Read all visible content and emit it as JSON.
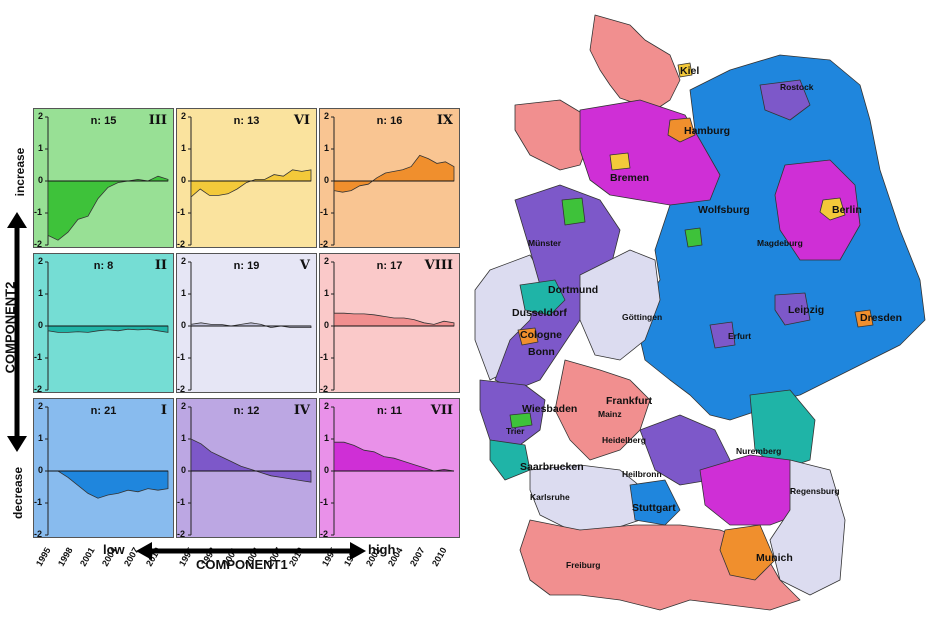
{
  "panels": [
    {
      "id": "III",
      "n_label": "n: 15",
      "color": "#98e095",
      "fill": "#3ec23a",
      "values": [
        -1.7,
        -1.85,
        -1.6,
        -1.2,
        -1.1,
        -0.55,
        -0.2,
        -0.05,
        0.0,
        0.05,
        0.0,
        0.15,
        0.05
      ]
    },
    {
      "id": "VI",
      "n_label": "n: 13",
      "color": "#fae39e",
      "fill": "#f3c93a",
      "values": [
        -0.5,
        -0.25,
        -0.45,
        -0.45,
        -0.4,
        -0.25,
        -0.05,
        0.05,
        0.05,
        0.2,
        0.15,
        0.35,
        0.3,
        0.35
      ]
    },
    {
      "id": "IX",
      "n_label": "n: 16",
      "color": "#f9c592",
      "fill": "#f08f2d",
      "values": [
        -0.3,
        -0.35,
        -0.3,
        -0.15,
        -0.1,
        0.1,
        0.25,
        0.3,
        0.35,
        0.45,
        0.8,
        0.7,
        0.55,
        0.6,
        0.45
      ]
    },
    {
      "id": "II",
      "n_label": "n: 8",
      "color": "#75ddd4",
      "fill": "#1fb4a7",
      "values": [
        -0.15,
        -0.2,
        -0.2,
        -0.18,
        -0.2,
        -0.15,
        -0.12,
        -0.15,
        -0.1,
        -0.12,
        -0.1,
        -0.15,
        -0.2
      ]
    },
    {
      "id": "V",
      "n_label": "n: 19",
      "color": "#e6e6f5",
      "fill": "#c4c4dc",
      "values": [
        0.05,
        0.1,
        0.05,
        0.05,
        0.0,
        0.05,
        0.1,
        0.05,
        -0.05,
        0.0,
        -0.05,
        -0.05,
        -0.05
      ]
    },
    {
      "id": "VIII",
      "n_label": "n: 17",
      "color": "#fac9c9",
      "fill": "#f18f8f",
      "values": [
        0.4,
        0.4,
        0.38,
        0.38,
        0.35,
        0.3,
        0.25,
        0.25,
        0.2,
        0.1,
        0.05,
        0.15,
        0.1
      ]
    },
    {
      "id": "I",
      "n_label": "n: 21",
      "color": "#88bbee",
      "fill": "#1f86dd",
      "values": [
        0.0,
        0.0,
        -0.2,
        -0.45,
        -0.7,
        -0.85,
        -0.75,
        -0.7,
        -0.6,
        -0.65,
        -0.55,
        -0.6,
        -0.55
      ]
    },
    {
      "id": "IV",
      "n_label": "n: 12",
      "color": "#bca7e3",
      "fill": "#7d58c9",
      "values": [
        1.0,
        0.85,
        0.6,
        0.45,
        0.3,
        0.15,
        0.05,
        -0.05,
        -0.15,
        -0.2,
        -0.25,
        -0.3,
        -0.35
      ]
    },
    {
      "id": "VII",
      "n_label": "n: 11",
      "color": "#e991e9",
      "fill": "#cf2fd6",
      "values": [
        0.9,
        0.9,
        0.8,
        0.65,
        0.6,
        0.45,
        0.4,
        0.3,
        0.2,
        0.1,
        0.0,
        0.05,
        0.0
      ]
    }
  ],
  "y_ticks": [
    "2",
    "1",
    "0",
    "-1",
    "-2"
  ],
  "x_ticks": [
    "1995",
    "1998",
    "2001",
    "2004",
    "2007",
    "2010"
  ],
  "axes": {
    "component1": "COMPONENT1",
    "component2": "COMPONENT2",
    "low": "low",
    "high": "high",
    "increase": "increase",
    "decrease": "decrease"
  },
  "colors": {
    "increase_green": "#3ec23a",
    "yellow": "#f3c93a",
    "orange": "#f08f2d",
    "teal": "#1fb4a7",
    "lavender": "#dcdcf0",
    "salmon": "#f18f8f",
    "blue": "#1f86dd",
    "purple": "#7d58c9",
    "magenta": "#cf2fd6"
  },
  "cities": {
    "kiel": "Kiel",
    "rostock": "Rostock",
    "hamburg": "Hamburg",
    "bremen": "Bremen",
    "wolfsburg": "Wolfsburg",
    "berlin": "Berlin",
    "magdeburg": "Magdeburg",
    "muenster": "Münster",
    "dortmund": "Dortmund",
    "goettingen": "Göttingen",
    "duesseldorf": "Dusseldorf",
    "cologne": "Cologne",
    "bonn": "Bonn",
    "leipzig": "Leipzig",
    "erfurt": "Erfurt",
    "dresden": "Dresden",
    "frankfurt": "Frankfurt",
    "wiesbaden": "Wiesbaden",
    "mainz": "Mainz",
    "trier": "Trier",
    "heidelberg": "Heidelberg",
    "nuremberg": "Nuremberg",
    "heilbronn": "Heilbronn",
    "saarbruecken": "Saarbrucken",
    "regensburg": "Regensburg",
    "karlsruhe": "Karlsruhe",
    "stuttgart": "Stuttgart",
    "munich": "Munich",
    "freiburg": "Freiburg"
  }
}
